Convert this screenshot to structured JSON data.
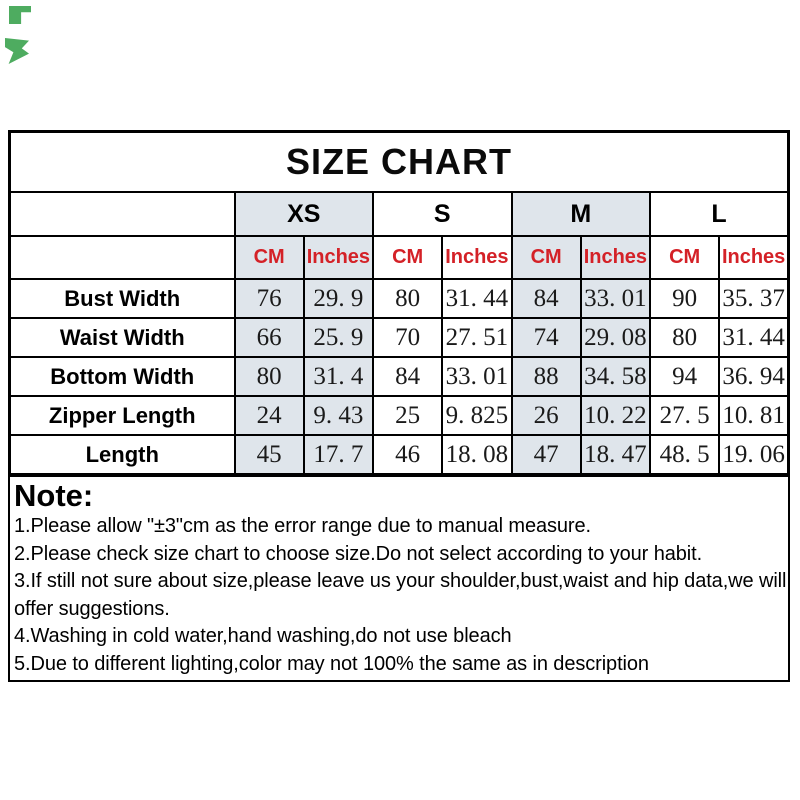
{
  "title": "SIZE CHART",
  "sizes": {
    "xs": "XS",
    "s": "S",
    "m": "M",
    "l": "L"
  },
  "highlighted_sizes": [
    "XS",
    "M"
  ],
  "unit_labels": {
    "cm": "CM",
    "inches": "Inches"
  },
  "columns": [
    "XS CM",
    "XS Inches",
    "S CM",
    "S Inches",
    "M CM",
    "M Inches",
    "L CM",
    "L Inches"
  ],
  "rows": [
    {
      "label": "Bust Width",
      "values": [
        "76",
        "29. 9",
        "80",
        "31. 44",
        "84",
        "33. 01",
        "90",
        "35. 37"
      ]
    },
    {
      "label": "Waist Width",
      "values": [
        "66",
        "25. 9",
        "70",
        "27. 51",
        "74",
        "29. 08",
        "80",
        "31. 44"
      ]
    },
    {
      "label": "Bottom Width",
      "values": [
        "80",
        "31. 4",
        "84",
        "33. 01",
        "88",
        "34. 58",
        "94",
        "36. 94"
      ]
    },
    {
      "label": "Zipper Length",
      "values": [
        "24",
        "9. 43",
        "25",
        "9. 825",
        "26",
        "10. 22",
        "27. 5",
        "10. 81"
      ]
    },
    {
      "label": "Length",
      "values": [
        "45",
        "17. 7",
        "46",
        "18. 08",
        "47",
        "18. 47",
        "48. 5",
        "19. 06"
      ]
    }
  ],
  "note": {
    "heading": "Note:",
    "lines": [
      "1.Please allow \"±3\"cm as the error range due to manual measure.",
      "2.Please check size chart to choose size.Do not select according to your habit.",
      "3.If still not sure about size,please leave us your shoulder,bust,waist and hip data,we will offer suggestions.",
      "4.Washing in cold water,hand washing,do not use bleach",
      "5.Due to different lighting,color may not 100% the same as in description"
    ]
  },
  "colors": {
    "unit_label_red": "#d42127",
    "highlight_column_bg": "#dfe5eb",
    "border_black": "#000000",
    "artifact_green": "#2f9e44"
  }
}
